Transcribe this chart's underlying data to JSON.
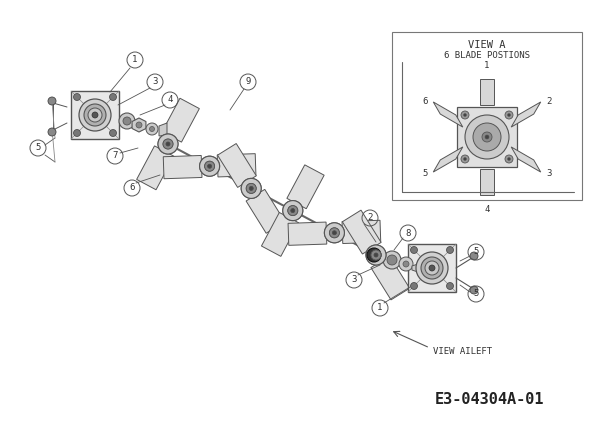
{
  "bg_color": "#ffffff",
  "title_code": "E3-04304A-01",
  "view_a_title": "VIEW A",
  "view_a_subtitle": "6 BLADE POSTIONS",
  "view_aileft": "VIEW AILEFT",
  "line_color": "#555555",
  "text_color": "#333333",
  "border_color": "#999999",
  "shaft_color": "#777777",
  "dark_color": "#222222"
}
